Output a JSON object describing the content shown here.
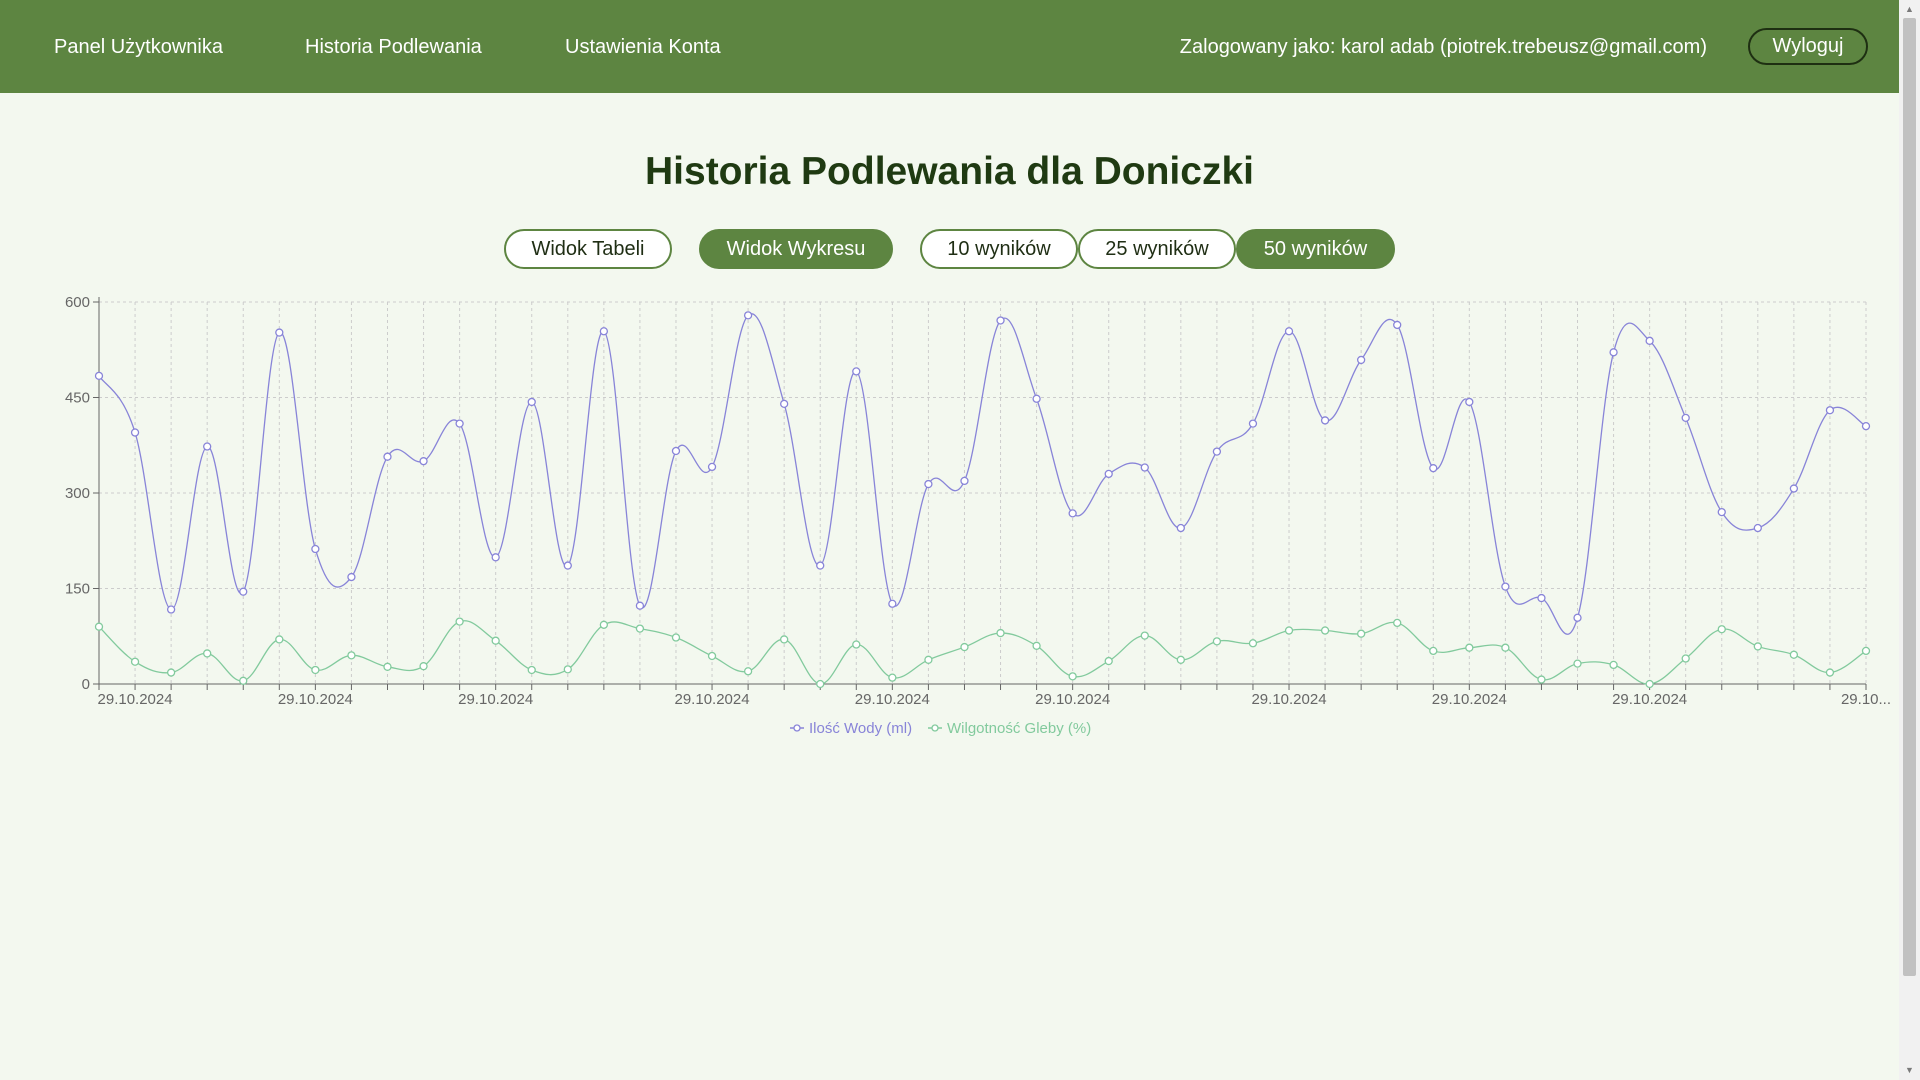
{
  "nav": {
    "links": [
      "Panel Użytkownika",
      "Historia Podlewania",
      "Ustawienia Konta"
    ],
    "user_info": "Zalogowany jako: karol adab (piotrek.trebeusz@gmail.com)",
    "logout_label": "Wyloguj"
  },
  "page": {
    "title": "Historia Podlewania dla Doniczki"
  },
  "view_buttons": {
    "table": "Widok Tabeli",
    "chart": "Widok Wykresu"
  },
  "result_buttons": {
    "r10": "10 wyników",
    "r25": "25 wyników",
    "r50": "50 wyników"
  },
  "colors": {
    "header": "#5d8541",
    "water_series": "#8884d8",
    "moisture_series": "#82ca9d"
  },
  "chart_data": {
    "type": "line",
    "title": "",
    "xlabel": "",
    "ylabel": "",
    "ylim": [
      0,
      600
    ],
    "yticks": [
      0,
      150,
      300,
      450,
      600
    ],
    "x_tick_labels": [
      "29.10.2024",
      "29.10.2024",
      "29.10.2024",
      "29.10.2024",
      "29.10.2024",
      "29.10.2024",
      "29.10.2024",
      "29.10.2024",
      "29.10.2024",
      "29.10..."
    ],
    "x_tick_label_indices": [
      1,
      6,
      11,
      17,
      22,
      27,
      33,
      38,
      43,
      49
    ],
    "grid": true,
    "legend_position": "bottom",
    "series": [
      {
        "name": "Ilość Wody (ml)",
        "color": "#8884d8",
        "values": [
          484,
          395,
          117,
          373,
          145,
          552,
          212,
          168,
          357,
          350,
          409,
          199,
          443,
          186,
          554,
          123,
          366,
          341,
          579,
          440,
          186,
          491,
          126,
          314,
          319,
          571,
          448,
          268,
          330,
          340,
          245,
          365,
          409,
          554,
          414,
          509,
          564,
          339,
          443,
          153,
          135,
          104,
          521,
          539,
          418,
          270,
          245,
          307,
          430,
          405
        ]
      },
      {
        "name": "Wilgotność Gleby (%)",
        "color": "#82ca9d",
        "values": [
          90,
          35,
          18,
          48,
          5,
          70,
          22,
          45,
          27,
          28,
          98,
          68,
          22,
          23,
          93,
          87,
          73,
          44,
          20,
          70,
          0,
          62,
          10,
          38,
          58,
          80,
          60,
          12,
          36,
          76,
          38,
          67,
          64,
          84,
          84,
          79,
          96,
          52,
          57,
          57,
          7,
          32,
          30,
          0,
          40,
          86,
          59,
          46,
          18,
          52
        ]
      }
    ]
  }
}
